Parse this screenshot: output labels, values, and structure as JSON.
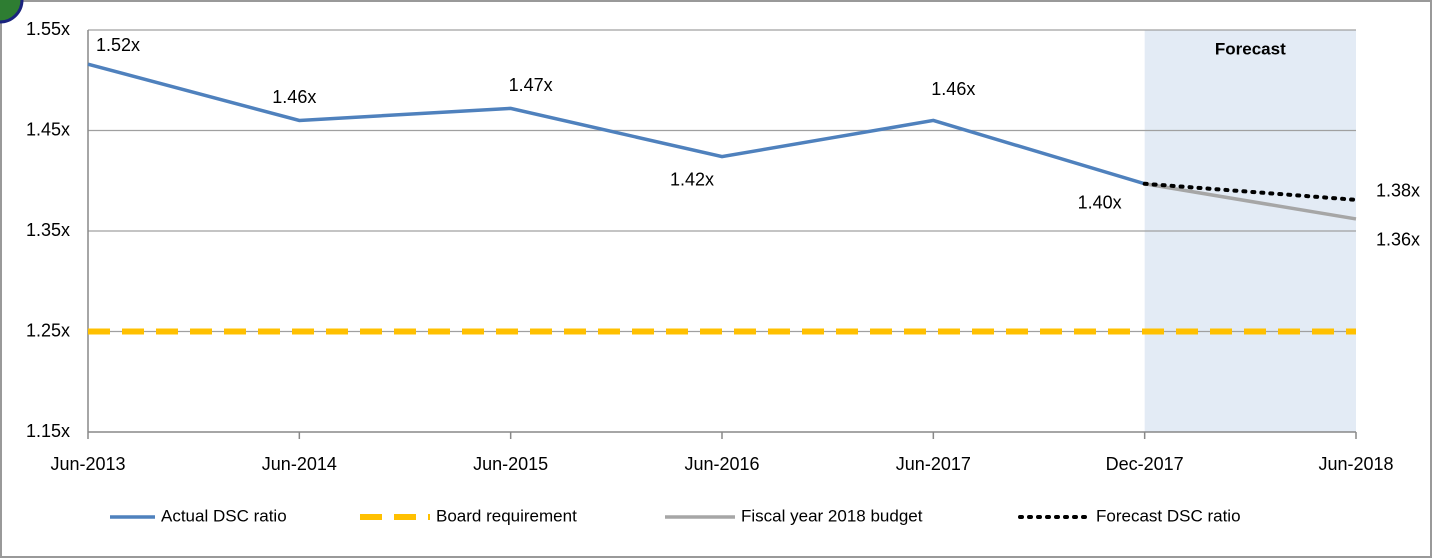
{
  "chart_data": {
    "type": "line",
    "categories": [
      "Jun-2013",
      "Jun-2014",
      "Jun-2015",
      "Jun-2016",
      "Jun-2017",
      "Dec-2017",
      "Jun-2018"
    ],
    "ylim": [
      1.15,
      1.55
    ],
    "yticks": [
      {
        "value": 1.15,
        "label": "1.15x"
      },
      {
        "value": 1.25,
        "label": "1.25x"
      },
      {
        "value": 1.35,
        "label": "1.35x"
      },
      {
        "value": 1.45,
        "label": "1.45x"
      },
      {
        "value": 1.55,
        "label": "1.55x"
      }
    ],
    "grid": true,
    "legend": "bottom",
    "annotation": "Forecast",
    "series": [
      {
        "name": "Actual DSC ratio",
        "color": "#4f81bd",
        "style": "solid",
        "values": [
          1.516,
          1.46,
          1.472,
          1.424,
          1.46,
          1.397,
          null
        ],
        "value_labels": [
          "1.52x",
          "1.46x",
          "1.47x",
          "1.42x",
          "1.46x",
          "1.40x",
          null
        ]
      },
      {
        "name": "Board requirement",
        "color": "#ffc000",
        "style": "dashed",
        "values": [
          1.25,
          1.25,
          1.25,
          1.25,
          1.25,
          1.25,
          1.25
        ]
      },
      {
        "name": "Fiscal year 2018 budget",
        "color": "#a6a6a6",
        "style": "solid",
        "values": [
          null,
          null,
          null,
          null,
          null,
          1.397,
          1.362
        ],
        "value_labels": [
          null,
          null,
          null,
          null,
          null,
          null,
          "1.36x"
        ]
      },
      {
        "name": "Forecast DSC ratio",
        "color": "#000000",
        "style": "dotted",
        "values": [
          null,
          null,
          null,
          null,
          null,
          1.397,
          1.381
        ],
        "value_labels": [
          null,
          null,
          null,
          null,
          null,
          null,
          "1.38x"
        ]
      }
    ]
  }
}
